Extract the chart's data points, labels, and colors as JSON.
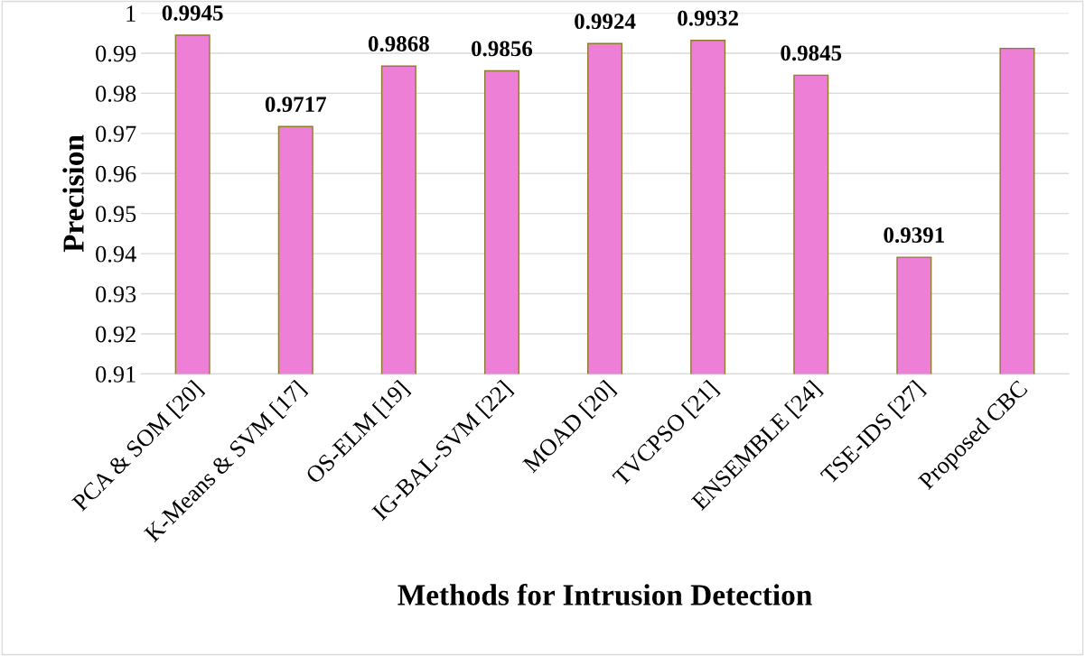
{
  "chart_data": {
    "type": "bar",
    "xlabel": "Methods for Intrusion Detection",
    "ylabel": "Precision",
    "categories": [
      "PCA & SOM [20]",
      "K-Means & SVM [17]",
      "OS-ELM [19]",
      "IG-BAL-SVM [22]",
      "MOAD [20]",
      "TVCPSO [21]",
      "ENSEMBLE [24]",
      "TSE-IDS [27]",
      "Proposed CBC"
    ],
    "values": [
      0.9945,
      0.9717,
      0.9868,
      0.9856,
      0.9924,
      0.9932,
      0.9845,
      0.9391,
      0.9912
    ],
    "value_labels": [
      "0.9945",
      "0.9717",
      "0.9868",
      "0.9856",
      "0.9924",
      "0.9932",
      "0.9845",
      "0.9391",
      null
    ],
    "color": "#ee7fd6",
    "ylim": [
      0.91,
      1
    ],
    "yticks": [
      0.91,
      0.92,
      0.93,
      0.94,
      0.95,
      0.96,
      0.97,
      0.98,
      0.99,
      1
    ],
    "grid": "y"
  }
}
